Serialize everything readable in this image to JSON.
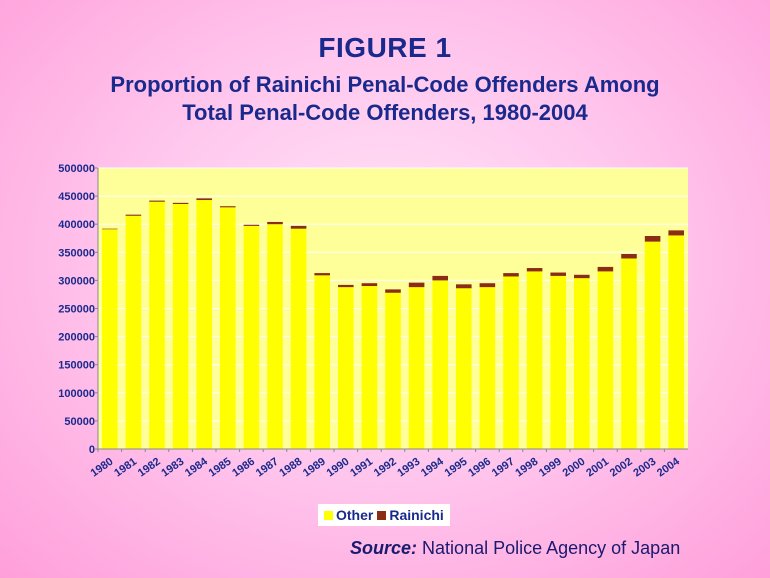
{
  "figure_number": "FIGURE 1",
  "title_line1": "Proportion of Rainichi Penal-Code Offenders Among",
  "title_line2": "Total Penal-Code Offenders, 1980-2004",
  "source_label": "Source:",
  "source_text": "National Police Agency of Japan",
  "colors": {
    "other": "#ffff00",
    "rainichi": "#8b2d14",
    "plot_bg": "#ffff99",
    "axis_text": "#1a2a8c"
  },
  "chart_data": {
    "type": "bar",
    "stacked": true,
    "categories": [
      "1980",
      "1981",
      "1982",
      "1983",
      "1984",
      "1985",
      "1986",
      "1987",
      "1988",
      "1989",
      "1990",
      "1991",
      "1992",
      "1993",
      "1994",
      "1995",
      "1996",
      "1997",
      "1998",
      "1999",
      "2000",
      "2001",
      "2002",
      "2003",
      "2004"
    ],
    "series": [
      {
        "name": "Other",
        "values": [
          391000,
          415000,
          440000,
          436000,
          443000,
          430000,
          397000,
          400000,
          392000,
          309000,
          288000,
          290000,
          278000,
          288000,
          300000,
          286000,
          288000,
          307000,
          316000,
          308000,
          304000,
          316000,
          339000,
          369000,
          380000
        ]
      },
      {
        "name": "Rainichi",
        "values": [
          1000,
          2000,
          2000,
          2000,
          3000,
          2000,
          2000,
          4000,
          5000,
          4000,
          4000,
          5000,
          6000,
          8000,
          8000,
          7000,
          7000,
          6000,
          6000,
          6000,
          6000,
          8000,
          8000,
          10000,
          9000
        ]
      }
    ],
    "ylim": [
      0,
      500000
    ],
    "yticks": [
      "0",
      "50000",
      "100000",
      "150000",
      "200000",
      "250000",
      "300000",
      "350000",
      "400000",
      "450000",
      "500000"
    ],
    "grid": true,
    "legend_position": "bottom"
  }
}
